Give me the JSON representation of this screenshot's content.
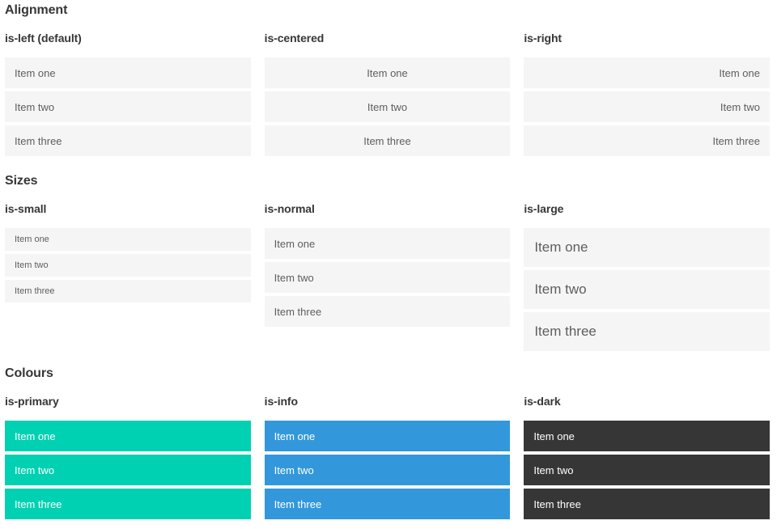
{
  "sections": [
    {
      "title": "Alignment",
      "columns": [
        {
          "title": "is-left (default)",
          "modifier": "is-left",
          "items": [
            "Item one",
            "Item two",
            "Item three"
          ]
        },
        {
          "title": "is-centered",
          "modifier": "is-centered",
          "items": [
            "Item one",
            "Item two",
            "Item three"
          ]
        },
        {
          "title": "is-right",
          "modifier": "is-right",
          "items": [
            "Item one",
            "Item two",
            "Item three"
          ]
        }
      ]
    },
    {
      "title": "Sizes",
      "columns": [
        {
          "title": "is-small",
          "modifier": "is-small",
          "items": [
            "Item one",
            "Item two",
            "Item three"
          ]
        },
        {
          "title": "is-normal",
          "modifier": "is-normal",
          "items": [
            "Item one",
            "Item two",
            "Item three"
          ]
        },
        {
          "title": "is-large",
          "modifier": "is-large",
          "items": [
            "Item one",
            "Item two",
            "Item three"
          ]
        }
      ]
    },
    {
      "title": "Colours",
      "columns": [
        {
          "title": "is-primary",
          "modifier": "is-primary",
          "items": [
            "Item one",
            "Item two",
            "Item three"
          ]
        },
        {
          "title": "is-info",
          "modifier": "is-info",
          "items": [
            "Item one",
            "Item two",
            "Item three"
          ]
        },
        {
          "title": "is-dark",
          "modifier": "is-dark",
          "items": [
            "Item one",
            "Item two",
            "Item three"
          ]
        }
      ]
    }
  ],
  "colors": {
    "page_bg": "#ffffff",
    "heading_text": "#363636",
    "item_bg": "#f5f5f5",
    "item_text": "#5e5e5e",
    "primary": "#00d1b2",
    "info": "#3398db",
    "dark": "#363636",
    "colored_item_text": "#ffffff"
  }
}
